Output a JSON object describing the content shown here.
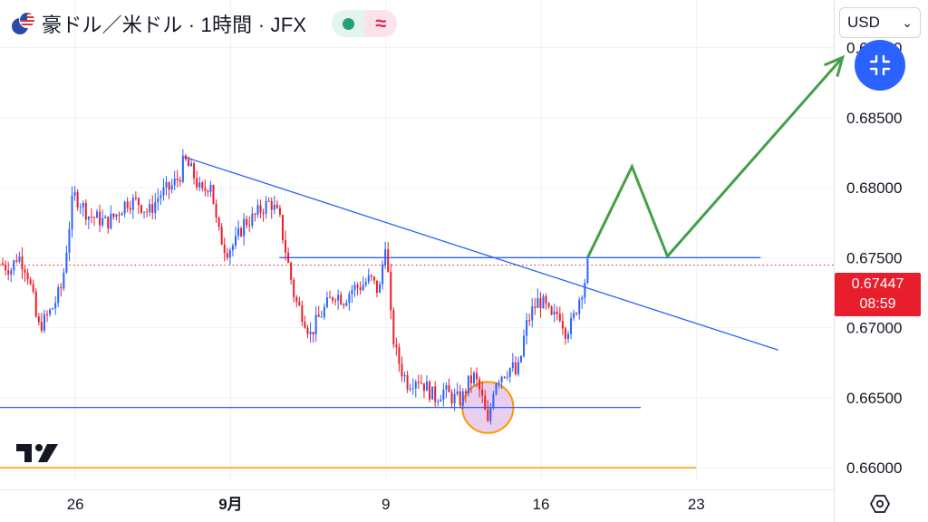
{
  "header": {
    "title": "豪ドル／米ドル · 1時間 · JFX",
    "status_icon": "market-open-dot",
    "indicator_icon": "approx-icon"
  },
  "currency_selector": {
    "label": "USD"
  },
  "last_price": {
    "value": "0.67447",
    "countdown": "08:59"
  },
  "colors": {
    "up": "#2962ff",
    "down": "#e91e2c",
    "trendline": "#2962ff",
    "arrow": "#43a047",
    "circle_fill": "#e1bee7",
    "circle_stroke": "#ff9800",
    "price_line": "#e91e2c",
    "bottom_line": "#ff9800"
  },
  "chart_data": {
    "type": "line",
    "title": "",
    "instrument": "AUD/USD",
    "timeframe": "1H",
    "xlabel": "",
    "ylabel": "",
    "x_ticks": [
      "26",
      "9月",
      "9",
      "16",
      "23"
    ],
    "x_tick_days": [
      26,
      33,
      40,
      47,
      54
    ],
    "x_range_days": [
      22.6,
      60.2
    ],
    "y_ticks": [
      "0.66000",
      "0.66500",
      "0.67000",
      "0.67500",
      "0.68000",
      "0.68500",
      "0.69000"
    ],
    "y_tick_values": [
      0.66,
      0.665,
      0.67,
      0.675,
      0.68,
      0.685,
      0.69
    ],
    "ylim": [
      0.6591,
      0.6934
    ],
    "current_price": 0.67447,
    "price_path": [
      [
        22.6,
        0.6746
      ],
      [
        23.1,
        0.6742
      ],
      [
        23.4,
        0.6752
      ],
      [
        23.8,
        0.6742
      ],
      [
        24.1,
        0.672
      ],
      [
        24.3,
        0.67
      ],
      [
        24.6,
        0.6705
      ],
      [
        25.0,
        0.6715
      ],
      [
        25.4,
        0.673
      ],
      [
        25.7,
        0.677
      ],
      [
        25.9,
        0.6795
      ],
      [
        26.2,
        0.679
      ],
      [
        26.6,
        0.678
      ],
      [
        27.0,
        0.6778
      ],
      [
        27.4,
        0.6775
      ],
      [
        27.8,
        0.678
      ],
      [
        28.3,
        0.679
      ],
      [
        28.8,
        0.679
      ],
      [
        29.3,
        0.6782
      ],
      [
        29.8,
        0.6795
      ],
      [
        30.3,
        0.68
      ],
      [
        30.7,
        0.6808
      ],
      [
        30.9,
        0.682
      ],
      [
        31.3,
        0.681
      ],
      [
        31.7,
        0.6795
      ],
      [
        32.1,
        0.6805
      ],
      [
        32.4,
        0.677
      ],
      [
        32.8,
        0.6755
      ],
      [
        33.2,
        0.676
      ],
      [
        33.6,
        0.6775
      ],
      [
        34.0,
        0.6778
      ],
      [
        34.4,
        0.6785
      ],
      [
        34.8,
        0.679
      ],
      [
        35.2,
        0.6778
      ],
      [
        35.6,
        0.6745
      ],
      [
        35.9,
        0.672
      ],
      [
        36.3,
        0.6708
      ],
      [
        36.6,
        0.6695
      ],
      [
        36.9,
        0.6705
      ],
      [
        37.3,
        0.6715
      ],
      [
        37.7,
        0.6725
      ],
      [
        38.1,
        0.672
      ],
      [
        38.5,
        0.6728
      ],
      [
        38.9,
        0.673
      ],
      [
        39.3,
        0.6735
      ],
      [
        39.7,
        0.6725
      ],
      [
        40.0,
        0.6765
      ],
      [
        40.2,
        0.671
      ],
      [
        40.4,
        0.6685
      ],
      [
        40.7,
        0.667
      ],
      [
        41.0,
        0.666
      ],
      [
        41.4,
        0.6665
      ],
      [
        41.8,
        0.6658
      ],
      [
        42.2,
        0.665
      ],
      [
        42.6,
        0.6655
      ],
      [
        43.0,
        0.665
      ],
      [
        43.4,
        0.6648
      ],
      [
        43.7,
        0.666
      ],
      [
        44.0,
        0.6665
      ],
      [
        44.3,
        0.6652
      ],
      [
        44.6,
        0.663
      ],
      [
        44.9,
        0.6662
      ],
      [
        45.3,
        0.6668
      ],
      [
        45.7,
        0.6672
      ],
      [
        45.9,
        0.6665
      ],
      [
        46.1,
        0.668
      ],
      [
        46.3,
        0.67
      ],
      [
        46.6,
        0.6712
      ],
      [
        46.9,
        0.672
      ],
      [
        47.2,
        0.6715
      ],
      [
        47.5,
        0.6705
      ],
      [
        47.8,
        0.6712
      ],
      [
        48.1,
        0.6698
      ],
      [
        48.4,
        0.6703
      ],
      [
        48.7,
        0.672
      ],
      [
        49.0,
        0.6735
      ],
      [
        49.1,
        0.67447
      ]
    ],
    "annotations": {
      "descending_trendline": {
        "from": [
          30.9,
          0.6822
        ],
        "to": [
          57.7,
          0.6684
        ]
      },
      "neckline": {
        "y": 0.675,
        "x_range": [
          35.2,
          56.9
        ]
      },
      "support_line": {
        "y": 0.6643,
        "x_range": [
          22.6,
          51.5
        ]
      },
      "bottom_line": {
        "y": 0.66,
        "x_range": [
          22.6,
          54.0
        ]
      },
      "highlight_circle": {
        "center": [
          44.6,
          0.6643
        ],
        "radius_days": 1.15
      },
      "forecast_path": [
        [
          49.1,
          0.675
        ],
        [
          51.1,
          0.6815
        ],
        [
          52.7,
          0.6751
        ],
        [
          60.6,
          0.6893
        ]
      ]
    }
  }
}
